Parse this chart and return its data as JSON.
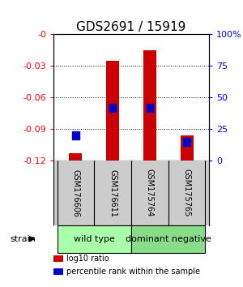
{
  "title": "GDS2691 / 15919",
  "samples": [
    "GSM176606",
    "GSM176611",
    "GSM175764",
    "GSM175765"
  ],
  "log10_ratio": [
    -0.113,
    -0.025,
    -0.015,
    -0.096
  ],
  "log10_bar_bottom": -0.12,
  "percentile_rank": [
    20,
    42,
    42,
    15
  ],
  "ylim_left": [
    -0.12,
    0.0
  ],
  "ylim_right": [
    0,
    100
  ],
  "yticks_left": [
    -0.12,
    -0.09,
    -0.06,
    -0.03,
    0.0
  ],
  "yticks_right": [
    0,
    25,
    50,
    75,
    100
  ],
  "ytick_labels_left": [
    "-0.12",
    "-0.09",
    "-0.06",
    "-0.03",
    "-0"
  ],
  "ytick_labels_right": [
    "0",
    "25",
    "50",
    "75",
    "100%"
  ],
  "bar_color": "#cc0000",
  "percentile_color": "#0000cc",
  "bar_width": 0.35,
  "groups": [
    {
      "label": "wild type",
      "samples": [
        0,
        1
      ],
      "color": "#aaffaa"
    },
    {
      "label": "dominant negative",
      "samples": [
        2,
        3
      ],
      "color": "#88dd88"
    }
  ],
  "strain_label": "strain",
  "legend_items": [
    {
      "color": "#cc0000",
      "label": "log10 ratio"
    },
    {
      "color": "#0000cc",
      "label": "percentile rank within the sample"
    }
  ],
  "background_color": "#ffffff",
  "plot_bg_color": "#ffffff",
  "label_area_color": "#cccccc",
  "title_fontsize": 11,
  "tick_fontsize": 8,
  "sample_fontsize": 7,
  "group_fontsize": 8,
  "legend_fontsize": 7
}
